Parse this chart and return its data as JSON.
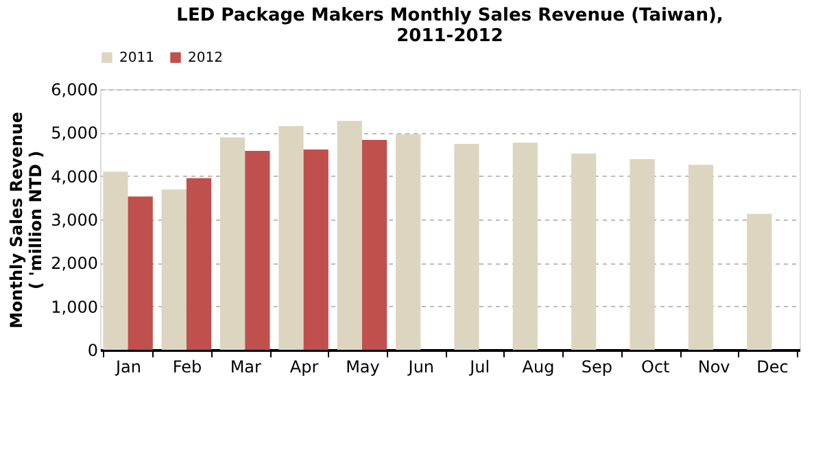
{
  "chart_data": {
    "type": "bar",
    "title": "LED Package Makers Monthly Sales Revenue (Taiwan),\n2011-2012",
    "ylabel": "Monthly Sales Revenue\n( 'million NTD )",
    "categories": [
      "Jan",
      "Feb",
      "Mar",
      "Apr",
      "May",
      "Jun",
      "Jul",
      "Aug",
      "Sep",
      "Oct",
      "Nov",
      "Dec"
    ],
    "series": [
      {
        "name": "2011",
        "color": "#dcd6c0",
        "values": [
          4100,
          3690,
          4890,
          5150,
          5270,
          4960,
          4740,
          4770,
          4520,
          4390,
          4260,
          3130
        ]
      },
      {
        "name": "2012",
        "color": "#c0504d",
        "values": [
          3530,
          3950,
          4580,
          4610,
          4830,
          null,
          null,
          null,
          null,
          null,
          null,
          null
        ]
      }
    ],
    "ylim": [
      0,
      6000
    ],
    "yticks": [
      0,
      {
        "value": 1000,
        "label": "1,000"
      },
      {
        "value": 2000,
        "label": "2,000"
      },
      {
        "value": 3000,
        "label": "3,000"
      },
      {
        "value": 4000,
        "label": "4,000"
      },
      {
        "value": 5000,
        "label": "5,000"
      },
      {
        "value": 6000,
        "label": "6,000"
      }
    ],
    "grid": "y",
    "legend": "top"
  }
}
